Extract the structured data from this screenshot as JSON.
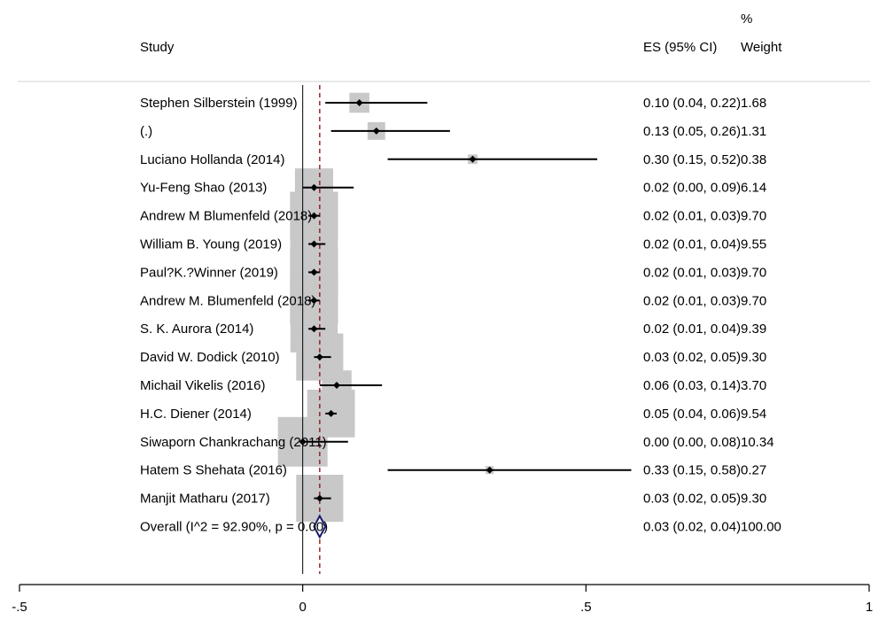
{
  "chart_data": {
    "type": "forest",
    "header": {
      "study": "Study",
      "es": "ES (95% CI)",
      "weight_line1": "%",
      "weight_line2": "Weight"
    },
    "studies": [
      {
        "study": "Stephen Silberstein (1999)",
        "es": 0.1,
        "lo": 0.04,
        "hi": 0.22,
        "es_text": "0.10 (0.04, 0.22)",
        "weight": 1.68,
        "weight_text": "1.68"
      },
      {
        "study": "(.)",
        "es": 0.13,
        "lo": 0.05,
        "hi": 0.26,
        "es_text": "0.13 (0.05, 0.26)",
        "weight": 1.31,
        "weight_text": "1.31"
      },
      {
        "study": "Luciano Hollanda (2014)",
        "es": 0.3,
        "lo": 0.15,
        "hi": 0.52,
        "es_text": "0.30 (0.15, 0.52)",
        "weight": 0.38,
        "weight_text": "0.38"
      },
      {
        "study": "Yu-Feng Shao (2013)",
        "es": 0.02,
        "lo": 0.0,
        "hi": 0.09,
        "es_text": "0.02 (0.00, 0.09)",
        "weight": 6.14,
        "weight_text": "6.14"
      },
      {
        "study": "Andrew M Blumenfeld (2018)",
        "es": 0.02,
        "lo": 0.01,
        "hi": 0.03,
        "es_text": "0.02 (0.01, 0.03)",
        "weight": 9.7,
        "weight_text": "9.70"
      },
      {
        "study": "William B. Young (2019)",
        "es": 0.02,
        "lo": 0.01,
        "hi": 0.04,
        "es_text": "0.02 (0.01, 0.04)",
        "weight": 9.55,
        "weight_text": "9.55"
      },
      {
        "study": "Paul?K.?Winner (2019)",
        "es": 0.02,
        "lo": 0.01,
        "hi": 0.03,
        "es_text": "0.02 (0.01, 0.03)",
        "weight": 9.7,
        "weight_text": "9.70"
      },
      {
        "study": "Andrew M. Blumenfeld (2018)",
        "es": 0.02,
        "lo": 0.01,
        "hi": 0.03,
        "es_text": "0.02 (0.01, 0.03)",
        "weight": 9.7,
        "weight_text": "9.70"
      },
      {
        "study": "S. K. Aurora (2014)",
        "es": 0.02,
        "lo": 0.01,
        "hi": 0.04,
        "es_text": "0.02 (0.01, 0.04)",
        "weight": 9.39,
        "weight_text": "9.39"
      },
      {
        "study": "David W. Dodick (2010)",
        "es": 0.03,
        "lo": 0.02,
        "hi": 0.05,
        "es_text": "0.03 (0.02, 0.05)",
        "weight": 9.3,
        "weight_text": "9.30"
      },
      {
        "study": "Michail Vikelis (2016)",
        "es": 0.06,
        "lo": 0.03,
        "hi": 0.14,
        "es_text": "0.06 (0.03, 0.14)",
        "weight": 3.7,
        "weight_text": "3.70"
      },
      {
        "study": "H.C. Diener (2014)",
        "es": 0.05,
        "lo": 0.04,
        "hi": 0.06,
        "es_text": "0.05 (0.04, 0.06)",
        "weight": 9.54,
        "weight_text": "9.54"
      },
      {
        "study": "Siwaporn Chankrachang (2011)",
        "es": 0.0,
        "lo": 0.0,
        "hi": 0.08,
        "es_text": "0.00 (0.00, 0.08)",
        "weight": 10.34,
        "weight_text": "10.34"
      },
      {
        "study": "Hatem S Shehata (2016)",
        "es": 0.33,
        "lo": 0.15,
        "hi": 0.58,
        "es_text": "0.33 (0.15, 0.58)",
        "weight": 0.27,
        "weight_text": "0.27"
      },
      {
        "study": "Manjit Matharu (2017)",
        "es": 0.03,
        "lo": 0.02,
        "hi": 0.05,
        "es_text": "0.03 (0.02, 0.05)",
        "weight": 9.3,
        "weight_text": "9.30"
      }
    ],
    "overall": {
      "label": "Overall  (I^2 = 92.90%, p = 0.00)",
      "es": 0.03,
      "lo": 0.02,
      "hi": 0.04,
      "es_text": "0.03 (0.02, 0.04)",
      "weight_text": "100.00"
    },
    "x_ticks": [
      -0.5,
      0,
      0.5,
      1
    ],
    "x_tick_labels": [
      "-.5",
      "0",
      ".5",
      "1"
    ],
    "xlim": [
      -0.5,
      1
    ],
    "null_line": 0,
    "pooled_line": 0.03,
    "colors": {
      "box": "#c8c8c8",
      "ci": "#000000",
      "pooled_line": "#8b1a1a",
      "diamond": "#1a1a6e",
      "separator": "#d0d0d0"
    }
  }
}
